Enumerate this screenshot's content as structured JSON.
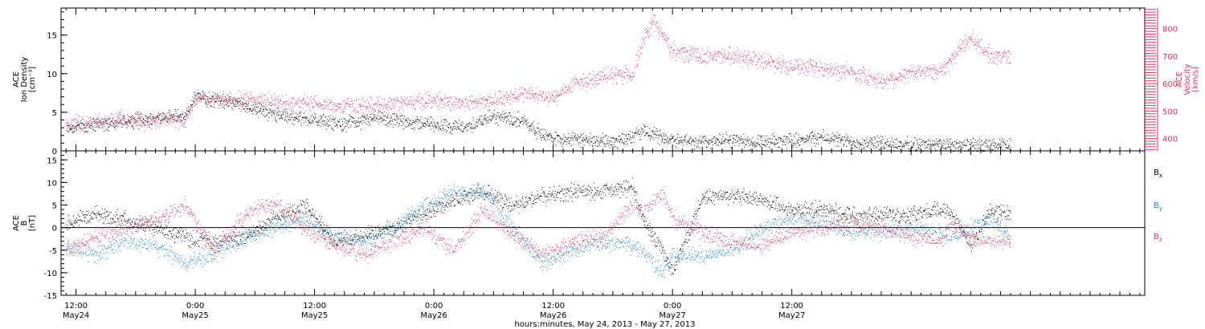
{
  "colors": {
    "density": "#000000",
    "velocity": "#e8325e",
    "bx": "#000000",
    "by": "#1a86d8",
    "bz": "#e8325e"
  },
  "chart_data": [
    {
      "type": "scatter",
      "panel": "top",
      "left_axis": {
        "label_lines": [
          "ACE",
          "Ion Density",
          "[cm⁻³]"
        ],
        "ylim": [
          0,
          18.5
        ],
        "ticks": [
          "0",
          "5",
          "10",
          "15"
        ]
      },
      "right_axis": {
        "label_lines": [
          "ACE",
          "Velocity",
          "[km/s]"
        ],
        "ylim": [
          355,
          875
        ],
        "ticks": [
          "400",
          "500",
          "600",
          "700",
          "800"
        ]
      },
      "series": [
        {
          "name": "Ion Density",
          "axis": "left",
          "x": [
            -1,
            2,
            5,
            8,
            11,
            12,
            15,
            18,
            21,
            24,
            27,
            30,
            33,
            36,
            39,
            42,
            45,
            47,
            48,
            49,
            51,
            54,
            57,
            60,
            63,
            66,
            69,
            72,
            75,
            78,
            81,
            84,
            87,
            88,
            91,
            94
          ],
          "y": [
            3.0,
            3.5,
            3.8,
            4.3,
            4.5,
            7.0,
            6.5,
            5.5,
            4.5,
            4.0,
            3.5,
            4.2,
            3.8,
            3.5,
            3.0,
            4.5,
            4.0,
            2.0,
            1.8,
            1.6,
            1.5,
            1.2,
            2.5,
            1.5,
            1.2,
            1.5,
            1.0,
            1.5,
            1.8,
            1.2,
            1.0,
            0.8,
            0.9,
            0.7,
            0.7,
            0.7
          ]
        },
        {
          "name": "Velocity",
          "axis": "right",
          "x": [
            -1,
            2,
            5,
            8,
            11,
            12,
            15,
            18,
            21,
            24,
            27,
            30,
            33,
            36,
            39,
            42,
            45,
            48,
            50,
            53,
            56,
            57,
            58,
            60,
            63,
            66,
            69,
            72,
            75,
            78,
            81,
            84,
            87,
            88,
            90,
            92,
            94
          ],
          "y": [
            455,
            460,
            470,
            465,
            470,
            545,
            545,
            540,
            530,
            525,
            520,
            520,
            530,
            540,
            530,
            540,
            565,
            545,
            600,
            625,
            635,
            750,
            830,
            720,
            700,
            705,
            685,
            665,
            650,
            645,
            610,
            640,
            650,
            690,
            770,
            700,
            700
          ]
        }
      ]
    },
    {
      "type": "scatter",
      "panel": "bottom",
      "left_axis": {
        "label_lines": [
          "ACE",
          "B",
          "[nT]"
        ],
        "ylim": [
          -15,
          17
        ],
        "ticks": [
          "-15",
          "-10",
          "-5",
          "0",
          "5",
          "10",
          "15"
        ]
      },
      "legend_position": "right",
      "legend": [
        {
          "base": "B",
          "sub": "x"
        },
        {
          "base": "B",
          "sub": "y"
        },
        {
          "base": "B",
          "sub": "z"
        }
      ],
      "series": [
        {
          "name": "Bx",
          "x": [
            -1,
            2,
            5,
            8,
            11,
            14,
            17,
            20,
            23,
            26,
            29,
            32,
            35,
            38,
            41,
            44,
            47,
            50,
            53,
            56,
            57,
            59,
            60,
            63,
            66,
            69,
            72,
            75,
            78,
            81,
            84,
            87,
            88,
            90,
            92,
            94
          ],
          "y": [
            1,
            3,
            2,
            0,
            -2,
            -3,
            -2,
            2,
            5,
            -3,
            -2,
            0,
            3,
            6,
            8,
            5,
            7,
            8,
            8,
            9,
            2,
            -5,
            -10,
            7,
            7,
            6,
            4,
            4,
            3,
            3,
            3,
            4,
            4,
            -4,
            4,
            3
          ]
        },
        {
          "name": "By",
          "x": [
            -1,
            2,
            5,
            8,
            11,
            14,
            17,
            20,
            23,
            26,
            29,
            32,
            35,
            38,
            41,
            44,
            47,
            50,
            53,
            56,
            57,
            59,
            60,
            63,
            66,
            69,
            72,
            75,
            78,
            81,
            84,
            87,
            88,
            90,
            92,
            94
          ],
          "y": [
            -4,
            -6,
            -3,
            -4,
            -8,
            -6,
            -2,
            0,
            2,
            -2,
            -3,
            0,
            5,
            8,
            8,
            0,
            -8,
            -5,
            -3,
            -4,
            -5,
            -10,
            -6,
            -6,
            -5,
            0,
            2,
            1,
            -1,
            -1,
            0,
            -1,
            -2,
            0,
            2,
            -2
          ]
        },
        {
          "name": "Bz",
          "x": [
            -1,
            2,
            5,
            8,
            11,
            14,
            17,
            20,
            23,
            26,
            29,
            32,
            35,
            38,
            41,
            44,
            47,
            50,
            53,
            56,
            57,
            59,
            60,
            63,
            66,
            69,
            72,
            75,
            78,
            81,
            84,
            87,
            88,
            90,
            92,
            94
          ],
          "y": [
            -5,
            -2,
            0,
            2,
            5,
            -5,
            3,
            6,
            0,
            -4,
            -6,
            -3,
            0,
            -5,
            4,
            -2,
            -6,
            -3,
            -2,
            5,
            3,
            8,
            2,
            -1,
            -3,
            -4,
            -1,
            0,
            1,
            0,
            -2,
            -3,
            1,
            -2,
            -3,
            -3
          ]
        }
      ]
    }
  ],
  "x_axis": {
    "xlim": [
      -1.5,
      107.5
    ],
    "major_ticks": [
      {
        "hour": 0,
        "time": "12:00",
        "date": "May24"
      },
      {
        "hour": 12,
        "time": "0:00",
        "date": "May25"
      },
      {
        "hour": 24,
        "time": "12:00",
        "date": "May25"
      },
      {
        "hour": 36,
        "time": "0:00",
        "date": "May26"
      },
      {
        "hour": 48,
        "time": "12:00",
        "date": "May26"
      },
      {
        "hour": 60,
        "time": "0:00",
        "date": "May27"
      },
      {
        "hour": 72,
        "time": "12:00",
        "date": "May27"
      }
    ],
    "title": "hours:minutes, May 24, 2013 - May 27, 2013"
  }
}
